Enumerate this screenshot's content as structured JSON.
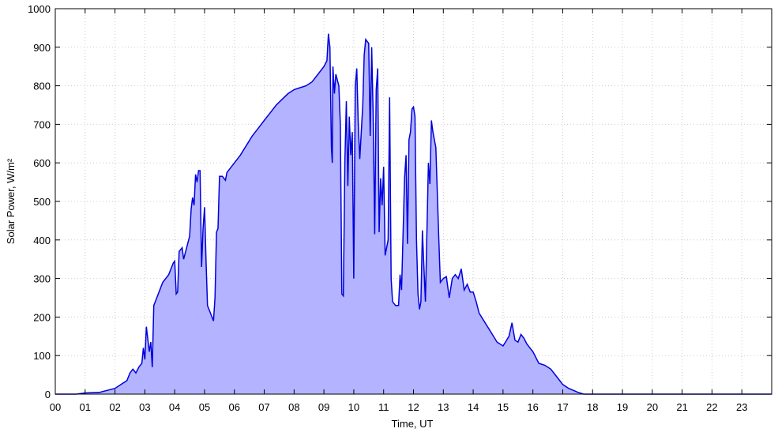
{
  "chart_data": {
    "type": "area",
    "xlabel": "Time, UT",
    "ylabel": "Solar Power, W/m²",
    "xlim": [
      0,
      24
    ],
    "ylim": [
      0,
      1000
    ],
    "xticks": [
      {
        "value": 0,
        "label": "00"
      },
      {
        "value": 1,
        "label": "01"
      },
      {
        "value": 2,
        "label": "02"
      },
      {
        "value": 3,
        "label": "03"
      },
      {
        "value": 4,
        "label": "04"
      },
      {
        "value": 5,
        "label": "05"
      },
      {
        "value": 6,
        "label": "06"
      },
      {
        "value": 7,
        "label": "07"
      },
      {
        "value": 8,
        "label": "08"
      },
      {
        "value": 9,
        "label": "09"
      },
      {
        "value": 10,
        "label": "10"
      },
      {
        "value": 11,
        "label": "11"
      },
      {
        "value": 12,
        "label": "12"
      },
      {
        "value": 13,
        "label": "13"
      },
      {
        "value": 14,
        "label": "14"
      },
      {
        "value": 15,
        "label": "15"
      },
      {
        "value": 16,
        "label": "16"
      },
      {
        "value": 17,
        "label": "17"
      },
      {
        "value": 18,
        "label": "18"
      },
      {
        "value": 19,
        "label": "19"
      },
      {
        "value": 20,
        "label": "20"
      },
      {
        "value": 21,
        "label": "21"
      },
      {
        "value": 22,
        "label": "22"
      },
      {
        "value": 23,
        "label": "23"
      }
    ],
    "yticks": [
      0,
      100,
      200,
      300,
      400,
      500,
      600,
      700,
      800,
      900,
      1000
    ],
    "grid": true,
    "line_color": "#0000dd",
    "fill_color": "#b3b3ff",
    "x": [
      0,
      0.7,
      1.0,
      1.5,
      2.0,
      2.2,
      2.4,
      2.5,
      2.6,
      2.7,
      2.8,
      2.9,
      2.95,
      3.0,
      3.05,
      3.15,
      3.2,
      3.25,
      3.3,
      3.4,
      3.5,
      3.6,
      3.8,
      3.95,
      4.0,
      4.05,
      4.1,
      4.15,
      4.25,
      4.3,
      4.4,
      4.5,
      4.55,
      4.6,
      4.65,
      4.7,
      4.75,
      4.8,
      4.85,
      4.9,
      4.95,
      5.0,
      5.05,
      5.1,
      5.2,
      5.3,
      5.35,
      5.4,
      5.45,
      5.5,
      5.6,
      5.7,
      5.75,
      5.9,
      6.0,
      6.2,
      6.4,
      6.6,
      6.8,
      7.0,
      7.2,
      7.4,
      7.6,
      7.8,
      8.0,
      8.2,
      8.4,
      8.6,
      8.8,
      9.0,
      9.1,
      9.15,
      9.2,
      9.25,
      9.28,
      9.3,
      9.35,
      9.4,
      9.5,
      9.55,
      9.6,
      9.65,
      9.7,
      9.75,
      9.8,
      9.85,
      9.9,
      9.95,
      10.0,
      10.05,
      10.1,
      10.15,
      10.2,
      10.3,
      10.35,
      10.4,
      10.5,
      10.55,
      10.6,
      10.65,
      10.7,
      10.75,
      10.8,
      10.85,
      10.9,
      10.95,
      11.0,
      11.05,
      11.15,
      11.2,
      11.25,
      11.3,
      11.4,
      11.5,
      11.55,
      11.6,
      11.7,
      11.75,
      11.8,
      11.85,
      11.9,
      11.95,
      12.0,
      12.05,
      12.1,
      12.15,
      12.2,
      12.25,
      12.3,
      12.35,
      12.4,
      12.5,
      12.55,
      12.6,
      12.65,
      12.75,
      12.85,
      12.9,
      13.0,
      13.1,
      13.2,
      13.3,
      13.4,
      13.5,
      13.6,
      13.7,
      13.8,
      13.9,
      14.0,
      14.1,
      14.2,
      14.4,
      14.6,
      14.8,
      15.0,
      15.2,
      15.3,
      15.4,
      15.5,
      15.6,
      15.7,
      15.8,
      16.0,
      16.2,
      16.4,
      16.6,
      16.8,
      17.0,
      17.2,
      17.5,
      17.7,
      24
    ],
    "values": [
      0,
      0,
      3,
      5,
      15,
      25,
      35,
      55,
      65,
      55,
      70,
      80,
      120,
      90,
      175,
      110,
      135,
      70,
      230,
      250,
      270,
      290,
      310,
      340,
      345,
      260,
      265,
      370,
      380,
      350,
      380,
      410,
      480,
      510,
      490,
      570,
      550,
      580,
      580,
      330,
      430,
      485,
      350,
      230,
      210,
      190,
      250,
      420,
      430,
      565,
      565,
      555,
      575,
      590,
      600,
      620,
      645,
      670,
      690,
      710,
      730,
      750,
      765,
      780,
      790,
      795,
      800,
      810,
      830,
      850,
      865,
      935,
      900,
      640,
      600,
      850,
      780,
      830,
      800,
      700,
      260,
      255,
      600,
      760,
      540,
      720,
      620,
      680,
      300,
      800,
      845,
      700,
      610,
      750,
      880,
      920,
      910,
      670,
      900,
      720,
      415,
      790,
      845,
      420,
      560,
      490,
      590,
      360,
      400,
      770,
      300,
      240,
      230,
      230,
      310,
      270,
      560,
      620,
      390,
      660,
      680,
      740,
      745,
      720,
      400,
      260,
      220,
      240,
      425,
      330,
      240,
      600,
      545,
      710,
      680,
      640,
      400,
      290,
      300,
      305,
      250,
      300,
      310,
      300,
      325,
      270,
      285,
      265,
      265,
      240,
      210,
      185,
      160,
      135,
      125,
      150,
      185,
      140,
      135,
      155,
      145,
      130,
      110,
      80,
      75,
      65,
      45,
      25,
      15,
      5,
      0,
      0
    ]
  }
}
